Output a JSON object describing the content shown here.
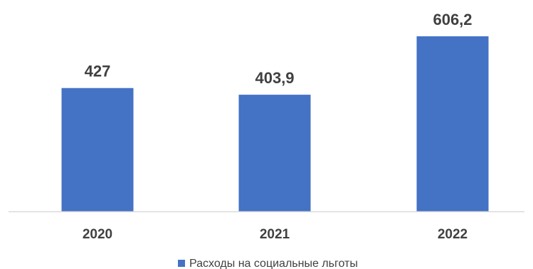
{
  "chart_data": {
    "type": "bar",
    "categories": [
      "2020",
      "2021",
      "2022"
    ],
    "series": [
      {
        "name": "Расходы на социальные льготы",
        "values": [
          427,
          403.9,
          606.2
        ],
        "labels": [
          "427",
          "403,9",
          "606,2"
        ]
      }
    ],
    "title": "",
    "xlabel": "",
    "ylabel": "",
    "ylim": [
      0,
      650
    ],
    "grid": false,
    "legend": "bottom",
    "colors": {
      "bar": "#4472C4",
      "axis": "#D9D9D9",
      "text": "#404040"
    }
  }
}
